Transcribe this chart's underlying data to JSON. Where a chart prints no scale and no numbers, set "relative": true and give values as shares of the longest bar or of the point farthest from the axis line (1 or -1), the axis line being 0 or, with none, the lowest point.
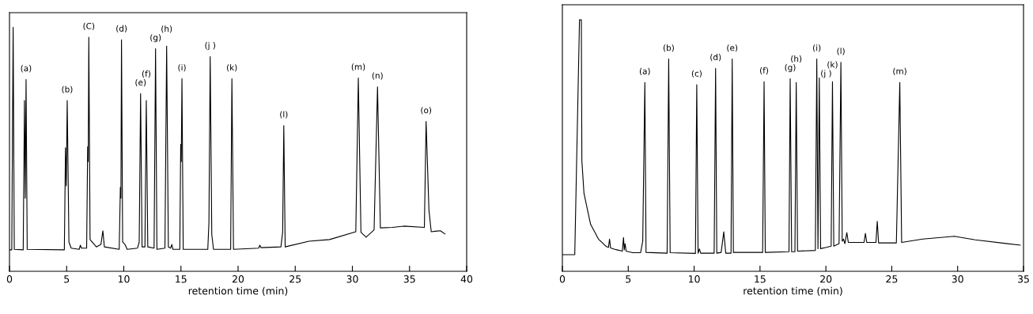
{
  "chart_data": [
    {
      "type": "line",
      "relative": true,
      "tick_labels": "x",
      "xlabel": "retention time (min)",
      "xlim": [
        0,
        40
      ],
      "xticks": [
        0,
        5,
        10,
        15,
        20,
        25,
        30,
        35,
        40
      ],
      "series": [
        {
          "color": "#000000",
          "x": [
            0,
            0.2,
            0.32,
            0.42,
            1.2,
            1.31,
            1.38,
            1.45,
            1.55,
            4.8,
            4.9,
            4.97,
            5.05,
            5.2,
            5.4,
            6.1,
            6.2,
            6.3,
            6.75,
            6.84,
            6.89,
            6.94,
            7.05,
            7.6,
            8.0,
            8.17,
            8.3,
            9.6,
            9.7,
            9.75,
            9.8,
            9.9,
            10.1,
            10.3,
            11.2,
            11.35,
            11.47,
            11.6,
            11.85,
            11.97,
            12.1,
            12.65,
            12.78,
            12.9,
            13.6,
            13.75,
            13.9,
            14.1,
            14.2,
            14.3,
            14.9,
            14.98,
            15.03,
            15.09,
            15.2,
            17.35,
            17.45,
            17.56,
            17.7,
            17.85,
            19.35,
            19.46,
            19.6,
            21.8,
            21.9,
            22.0,
            23.75,
            23.9,
            24.0,
            24.12,
            26.2,
            28,
            30.3,
            30.52,
            30.75,
            31.2,
            31.9,
            32.2,
            32.45,
            33.5,
            34.5,
            36.3,
            36.45,
            36.7,
            36.9,
            37.4,
            37.7,
            38.1
          ],
          "values": [
            0.088,
            0.088,
            1.0,
            0.09,
            0.088,
            0.7,
            0.3,
            0.786,
            0.09,
            0.088,
            0.506,
            0.35,
            0.7,
            0.12,
            0.095,
            0.09,
            0.107,
            0.095,
            0.095,
            0.51,
            0.45,
            0.959,
            0.13,
            0.1,
            0.11,
            0.166,
            0.1,
            0.09,
            0.344,
            0.3,
            0.949,
            0.12,
            0.11,
            0.09,
            0.095,
            0.12,
            0.728,
            0.1,
            0.1,
            0.7,
            0.1,
            0.095,
            0.912,
            0.09,
            0.095,
            0.923,
            0.1,
            0.095,
            0.11,
            0.09,
            0.09,
            0.52,
            0.45,
            0.789,
            0.09,
            0.09,
            0.2,
            0.88,
            0.15,
            0.09,
            0.09,
            0.789,
            0.09,
            0.095,
            0.107,
            0.097,
            0.1,
            0.16,
            0.597,
            0.1,
            0.123,
            0.13,
            0.162,
            0.792,
            0.16,
            0.14,
            0.17,
            0.756,
            0.178,
            0.18,
            0.185,
            0.18,
            0.614,
            0.25,
            0.162,
            0.165,
            0.166,
            0.153
          ]
        }
      ],
      "annotations": [
        {
          "text": "(a)",
          "x": 1.45,
          "y": 0.786
        },
        {
          "text": "(b)",
          "x": 5.05,
          "y": 0.7
        },
        {
          "text": "(C)",
          "x": 6.94,
          "y": 0.959
        },
        {
          "text": "(d)",
          "x": 9.8,
          "y": 0.949
        },
        {
          "text": "(e)",
          "x": 11.47,
          "y": 0.728
        },
        {
          "text": "(f)",
          "x": 11.97,
          "y": 0.7
        },
        {
          "text": "(g)",
          "x": 12.78,
          "y": 0.912
        },
        {
          "text": "(h)",
          "x": 13.75,
          "y": 0.923
        },
        {
          "text": "(i)",
          "x": 15.09,
          "y": 0.789
        },
        {
          "text": "(j )",
          "x": 17.56,
          "y": 0.88
        },
        {
          "text": "(k)",
          "x": 19.46,
          "y": 0.789
        },
        {
          "text": "(l)",
          "x": 24.0,
          "y": 0.597
        },
        {
          "text": "(m)",
          "x": 30.52,
          "y": 0.792
        },
        {
          "text": "(n)",
          "x": 32.2,
          "y": 0.756
        },
        {
          "text": "(o)",
          "x": 36.45,
          "y": 0.614
        }
      ]
    },
    {
      "type": "line",
      "relative": true,
      "tick_labels": "x",
      "xlabel": "retention time (min)",
      "xlim": [
        0,
        35
      ],
      "xticks": [
        0,
        5,
        10,
        15,
        20,
        25,
        30,
        35
      ],
      "series": [
        {
          "color": "#000000",
          "x": [
            0,
            0.94,
            1.3,
            1.44,
            1.48,
            1.64,
            2.14,
            2.74,
            3.34,
            3.5,
            3.58,
            3.66,
            4.08,
            4.55,
            4.64,
            4.7,
            4.76,
            4.84,
            5.34,
            5.94,
            6.1,
            6.26,
            6.35,
            7.95,
            8.07,
            8.18,
            10.1,
            10.2,
            10.3,
            10.4,
            10.5,
            11.52,
            11.63,
            11.72,
            12.05,
            12.25,
            12.4,
            12.8,
            12.89,
            12.98,
            15.2,
            15.31,
            15.4,
            17.2,
            17.29,
            17.4,
            17.65,
            17.75,
            17.85,
            19.2,
            19.31,
            19.4,
            19.5,
            19.6,
            20.03,
            20.4,
            20.5,
            20.6,
            21.0,
            21.14,
            21.24,
            21.34,
            21.44,
            21.59,
            21.7,
            22.9,
            23.0,
            23.1,
            23.8,
            23.9,
            24.0,
            25.35,
            25.61,
            25.75,
            27.35,
            29.75,
            31.35,
            34.75
          ],
          "values": [
            0.066,
            0.066,
            1.0,
            1.0,
            0.44,
            0.31,
            0.187,
            0.128,
            0.098,
            0.095,
            0.128,
            0.093,
            0.086,
            0.08,
            0.134,
            0.085,
            0.11,
            0.08,
            0.074,
            0.074,
            0.12,
            0.751,
            0.075,
            0.072,
            0.844,
            0.074,
            0.071,
            0.742,
            0.072,
            0.089,
            0.072,
            0.072,
            0.807,
            0.072,
            0.075,
            0.157,
            0.072,
            0.072,
            0.844,
            0.075,
            0.075,
            0.754,
            0.075,
            0.078,
            0.766,
            0.078,
            0.078,
            0.751,
            0.08,
            0.083,
            0.844,
            0.09,
            0.769,
            0.09,
            0.095,
            0.1,
            0.754,
            0.1,
            0.11,
            0.831,
            0.12,
            0.128,
            0.11,
            0.154,
            0.115,
            0.115,
            0.151,
            0.115,
            0.115,
            0.199,
            0.113,
            0.113,
            0.751,
            0.115,
            0.128,
            0.139,
            0.125,
            0.104
          ]
        }
      ],
      "annotations": [
        {
          "text": "(a)",
          "x": 6.26,
          "y": 0.751
        },
        {
          "text": "(b)",
          "x": 8.07,
          "y": 0.844
        },
        {
          "text": "(c)",
          "x": 10.2,
          "y": 0.742
        },
        {
          "text": "(d)",
          "x": 11.63,
          "y": 0.807
        },
        {
          "text": "(e)",
          "x": 12.89,
          "y": 0.844
        },
        {
          "text": "(f)",
          "x": 15.31,
          "y": 0.754
        },
        {
          "text": "(g)",
          "x": 17.29,
          "y": 0.766
        },
        {
          "text": "(h)",
          "x": 17.75,
          "y": 0.751
        },
        {
          "text": "(i)",
          "x": 19.31,
          "y": 0.844
        },
        {
          "text": "(j )",
          "x": 19.5,
          "y": 0.769
        },
        {
          "text": "(k)",
          "x": 20.5,
          "y": 0.754
        },
        {
          "text": "(l)",
          "x": 21.14,
          "y": 0.831
        },
        {
          "text": "(m)",
          "x": 25.61,
          "y": 0.751
        }
      ]
    }
  ]
}
